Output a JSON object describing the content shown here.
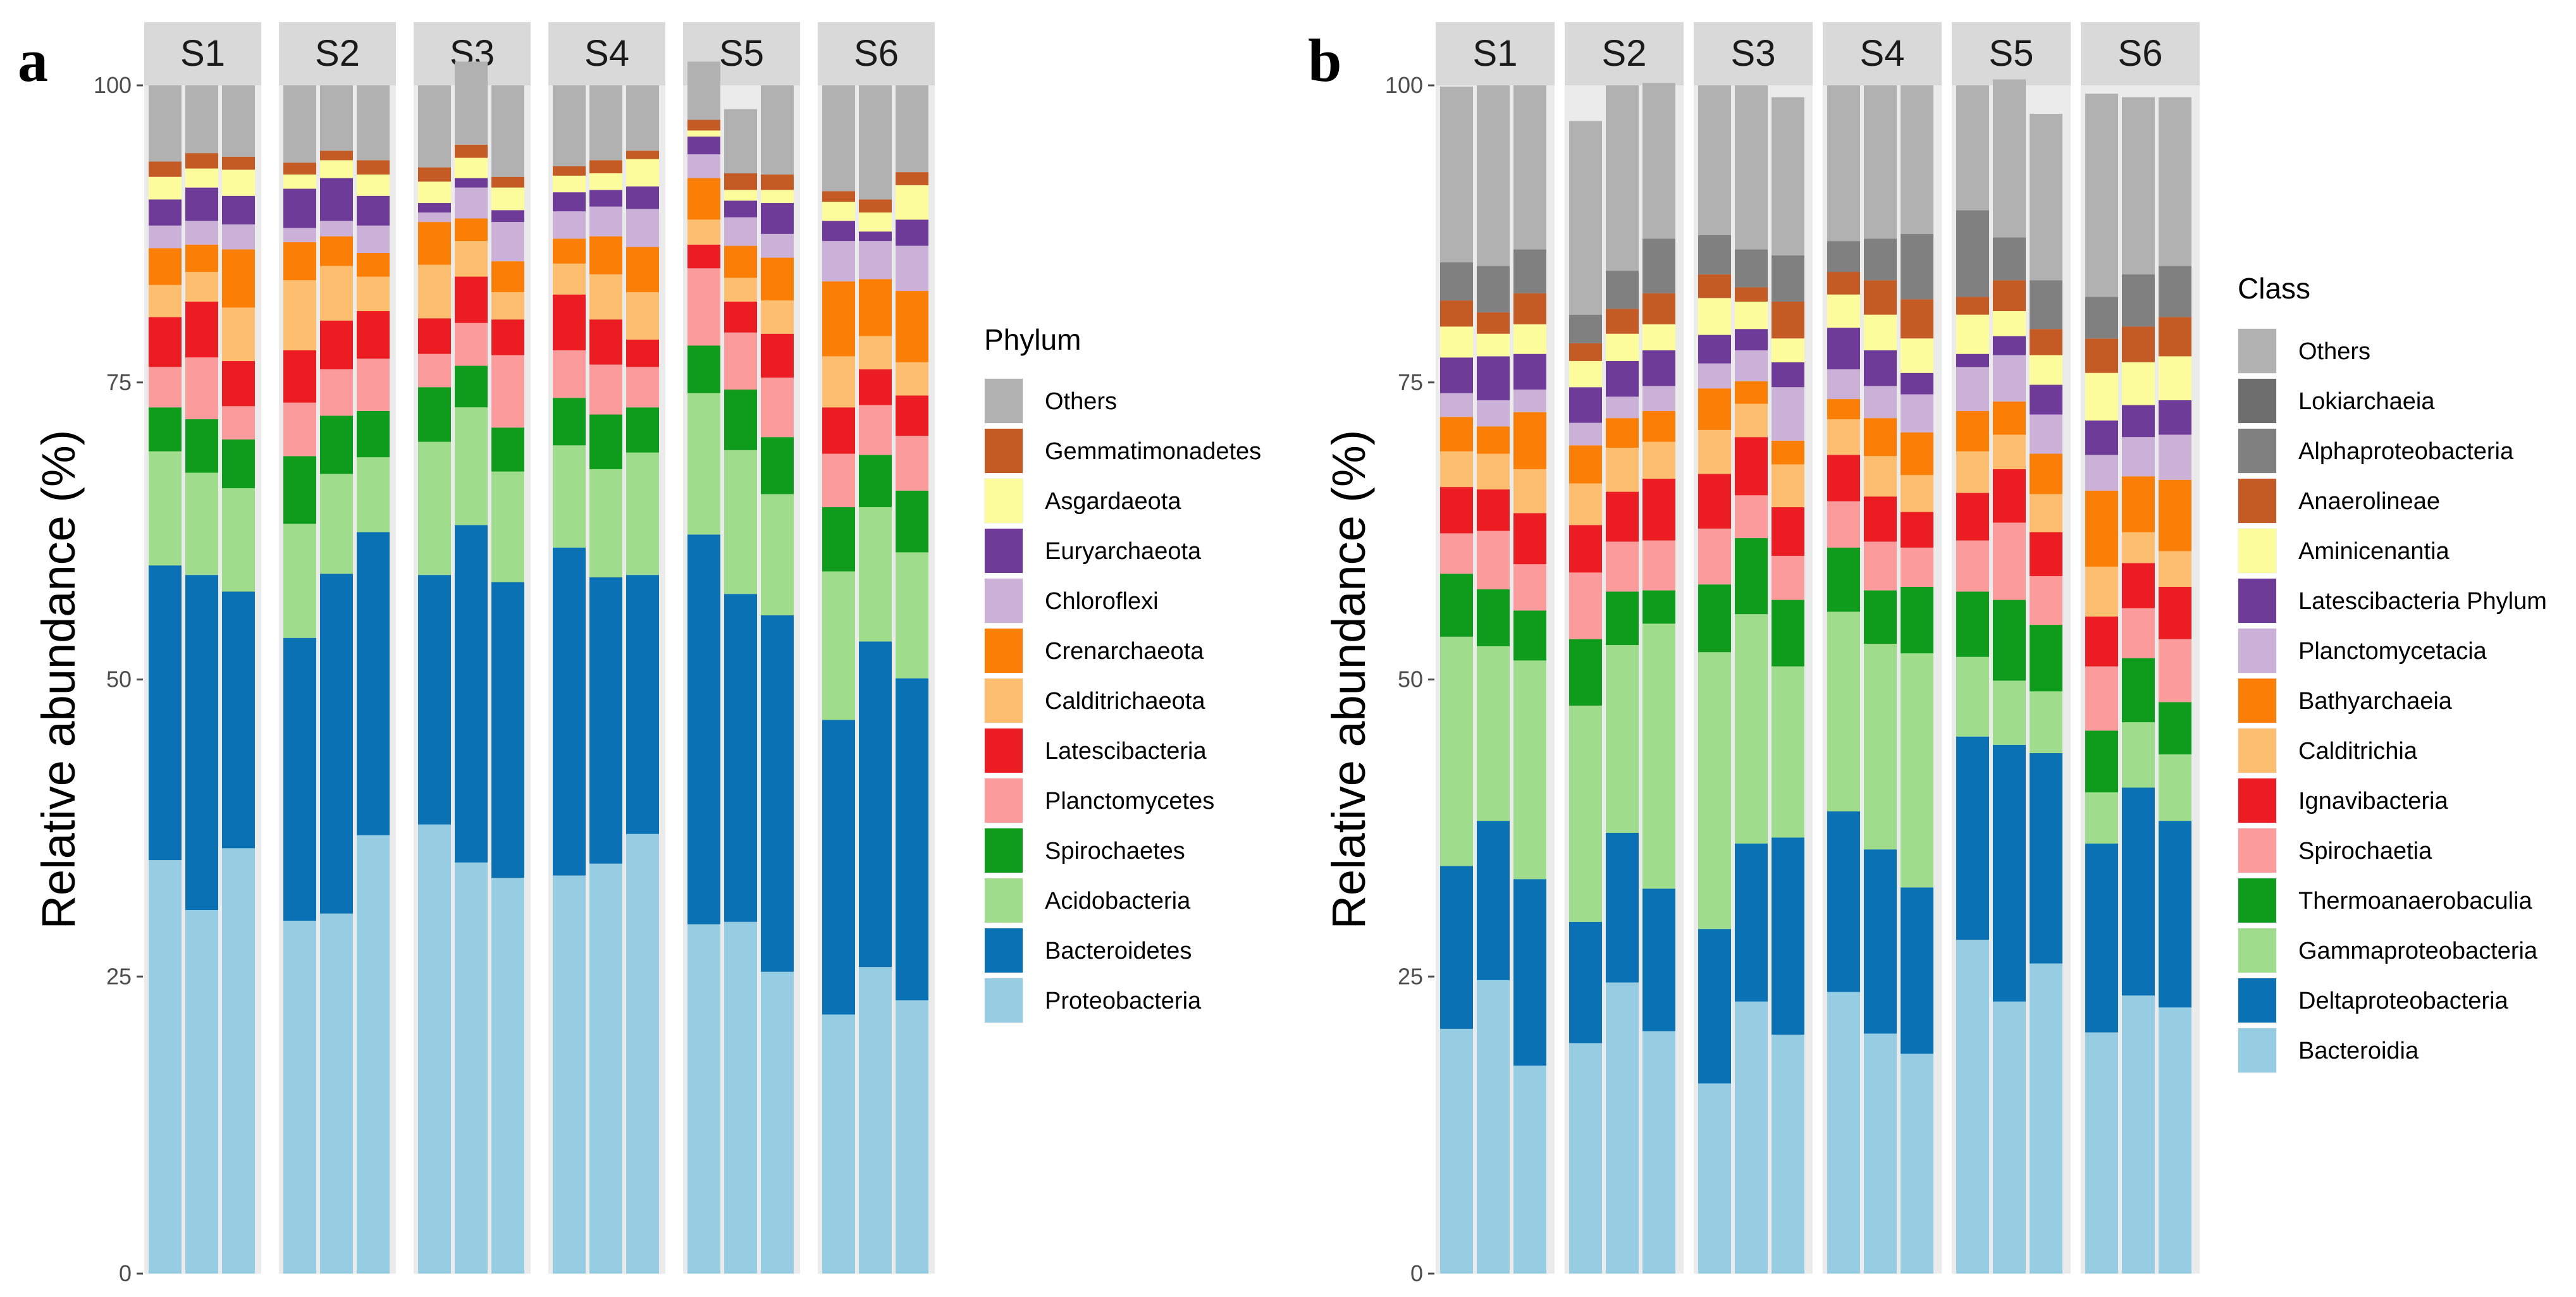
{
  "chart_data": [
    {
      "type": "bar",
      "stacked": true,
      "panel_label": "a",
      "ylabel": "Relative abundance (%)",
      "ylim": [
        0,
        100
      ],
      "yticks": [
        "0",
        "25",
        "50",
        "75",
        "100"
      ],
      "facets": [
        "S1",
        "S2",
        "S3",
        "S4",
        "S5",
        "S6"
      ],
      "replicates_per_facet": 3,
      "legend_title": "Phylum",
      "legend_order": [
        "Others",
        "Gemmatimonadetes",
        "Asgardaeota",
        "Euryarchaeota",
        "Chloroflexi",
        "Crenarchaeota",
        "Calditrichaeota",
        "Latescibacteria",
        "Planctomycetes",
        "Spirochaetes",
        "Acidobacteria",
        "Bacteroidetes",
        "Proteobacteria"
      ],
      "series": [
        {
          "name": "Proteobacteria",
          "color": "#96cde3",
          "values": [
            34.8,
            30.6,
            35.8,
            29.7,
            30.3,
            36.9,
            37.8,
            34.6,
            33.3,
            33.5,
            34.5,
            37.0,
            29.4,
            29.6,
            25.4,
            21.8,
            25.8,
            23.0
          ]
        },
        {
          "name": "Bacteroidetes",
          "color": "#0a72b4",
          "values": [
            24.8,
            28.2,
            21.6,
            23.8,
            28.6,
            25.5,
            21.0,
            28.4,
            24.9,
            27.6,
            24.1,
            21.8,
            32.8,
            27.6,
            30.0,
            24.8,
            27.4,
            27.1
          ]
        },
        {
          "name": "Acidobacteria",
          "color": "#9fdc8b",
          "values": [
            9.6,
            8.6,
            8.7,
            9.6,
            8.4,
            6.3,
            11.2,
            9.9,
            9.3,
            8.6,
            9.1,
            10.3,
            11.9,
            12.1,
            10.2,
            12.5,
            11.3,
            10.6
          ]
        },
        {
          "name": "Spirochaetes",
          "color": "#0f9b1b",
          "values": [
            3.7,
            4.5,
            4.1,
            5.7,
            4.9,
            3.9,
            4.6,
            3.5,
            3.7,
            4.0,
            4.6,
            3.8,
            4.0,
            5.1,
            4.8,
            5.4,
            4.4,
            5.2
          ]
        },
        {
          "name": "Planctomycetes",
          "color": "#fb9b9b",
          "values": [
            3.4,
            5.2,
            2.8,
            4.5,
            3.9,
            4.4,
            2.8,
            3.6,
            6.1,
            4.0,
            4.2,
            3.4,
            6.5,
            4.8,
            5.0,
            4.5,
            4.2,
            4.6
          ]
        },
        {
          "name": "Latescibacteria",
          "color": "#eb1c22",
          "values": [
            4.2,
            4.7,
            3.8,
            4.4,
            4.1,
            4.0,
            3.0,
            3.9,
            3.0,
            4.7,
            3.8,
            2.3,
            2.0,
            2.6,
            3.7,
            3.9,
            3.0,
            3.4
          ]
        },
        {
          "name": "Calditrichaeota",
          "color": "#fdbf6f",
          "values": [
            2.7,
            2.5,
            4.5,
            5.9,
            4.6,
            2.9,
            4.5,
            3.0,
            2.3,
            2.6,
            3.8,
            4.0,
            2.1,
            2.0,
            2.8,
            4.3,
            2.8,
            2.8
          ]
        },
        {
          "name": "Crenarchaeota",
          "color": "#fb7f07",
          "values": [
            3.1,
            2.3,
            4.9,
            3.2,
            2.5,
            2.0,
            3.6,
            1.9,
            2.6,
            2.1,
            3.2,
            3.8,
            3.5,
            2.7,
            3.6,
            6.3,
            4.8,
            6.0
          ]
        },
        {
          "name": "Chloroflexi",
          "color": "#cbb0d8",
          "values": [
            1.9,
            2.0,
            2.1,
            1.2,
            1.3,
            2.3,
            0.8,
            2.6,
            3.3,
            2.3,
            2.5,
            3.2,
            2.0,
            2.4,
            2.0,
            3.4,
            3.2,
            3.8
          ]
        },
        {
          "name": "Euryarchaeota",
          "color": "#6e3b99",
          "values": [
            2.2,
            2.8,
            2.4,
            3.3,
            3.6,
            2.5,
            0.8,
            0.8,
            1.0,
            1.6,
            1.4,
            1.9,
            1.5,
            1.4,
            2.6,
            1.7,
            0.8,
            2.2
          ]
        },
        {
          "name": "Asgardaeota",
          "color": "#fcfc9c",
          "values": [
            1.9,
            1.6,
            2.2,
            1.2,
            1.5,
            1.8,
            1.8,
            1.7,
            1.9,
            1.4,
            1.4,
            2.3,
            0.5,
            0.9,
            1.1,
            1.6,
            1.6,
            2.9
          ]
        },
        {
          "name": "Gemmatimonadetes",
          "color": "#c45a24",
          "values": [
            1.3,
            1.3,
            1.1,
            1.0,
            0.8,
            1.2,
            1.2,
            1.1,
            0.9,
            0.8,
            1.1,
            0.7,
            0.9,
            1.4,
            1.3,
            0.9,
            1.1,
            1.1
          ]
        },
        {
          "name": "Others",
          "color": "#b1b1b1",
          "values": [
            6.4,
            5.7,
            6.0,
            6.5,
            5.5,
            6.3,
            6.9,
            7.0,
            7.7,
            6.8,
            6.3,
            5.5,
            4.9,
            5.4,
            7.5,
            8.9,
            9.6,
            7.3
          ]
        }
      ]
    },
    {
      "type": "bar",
      "stacked": true,
      "panel_label": "b",
      "ylabel": "Relative abundance (%)",
      "ylim": [
        0,
        100
      ],
      "yticks": [
        "0",
        "25",
        "50",
        "75",
        "100"
      ],
      "facets": [
        "S1",
        "S2",
        "S3",
        "S4",
        "S5",
        "S6"
      ],
      "replicates_per_facet": 3,
      "legend_title": "Class",
      "legend_order": [
        "Others",
        "Lokiarchaeia",
        "Alphaproteobacteria",
        "Anaerolineae",
        "Aminicenantia",
        "Latescibacteria Phylum",
        "Planctomycetacia",
        "Bathyarchaeia",
        "Calditrichia",
        "Ignavibacteria",
        "Spirochaetia",
        "Thermoanaerobaculia",
        "Gammaproteobacteria",
        "Deltaproteobacteria",
        "Bacteroidia"
      ],
      "series": [
        {
          "name": "Bacteroidia",
          "color": "#96cde3",
          "values": [
            20.6,
            24.7,
            17.5,
            19.4,
            24.5,
            20.4,
            16.0,
            22.9,
            20.1,
            23.7,
            20.2,
            18.5,
            28.1,
            22.9,
            26.1,
            20.3,
            23.4,
            22.4
          ]
        },
        {
          "name": "Deltaproteobacteria",
          "color": "#0a72b4",
          "values": [
            13.7,
            13.4,
            15.7,
            10.2,
            12.6,
            12.0,
            13.0,
            13.3,
            16.6,
            15.2,
            15.5,
            14.0,
            17.1,
            21.6,
            17.7,
            15.9,
            17.5,
            15.7
          ]
        },
        {
          "name": "Gammaproteobacteria",
          "color": "#9fdc8b",
          "values": [
            19.3,
            14.7,
            18.4,
            18.2,
            15.8,
            22.3,
            23.3,
            19.3,
            14.4,
            16.8,
            17.3,
            19.7,
            6.7,
            5.4,
            5.2,
            4.3,
            5.5,
            5.6
          ]
        },
        {
          "name": "Thermoanaerobaculia",
          "color": "#0f9b1b",
          "values": [
            5.3,
            4.8,
            4.2,
            5.6,
            4.5,
            2.8,
            5.7,
            6.4,
            5.6,
            5.4,
            4.5,
            5.6,
            5.5,
            6.8,
            5.6,
            5.2,
            5.4,
            4.4
          ]
        },
        {
          "name": "Spirochaetia",
          "color": "#fb9b9b",
          "values": [
            3.4,
            4.9,
            3.9,
            5.6,
            4.2,
            4.2,
            4.7,
            3.6,
            3.7,
            3.9,
            4.1,
            3.3,
            4.3,
            6.5,
            4.1,
            5.4,
            4.2,
            5.3
          ]
        },
        {
          "name": "Ignavibacteria",
          "color": "#eb1c22",
          "values": [
            3.9,
            3.5,
            4.3,
            4.0,
            4.2,
            5.2,
            4.6,
            4.9,
            4.1,
            3.9,
            3.8,
            3.0,
            4.0,
            4.5,
            3.7,
            4.2,
            3.8,
            4.4
          ]
        },
        {
          "name": "Calditrichia",
          "color": "#fdbf6f",
          "values": [
            3.0,
            3.0,
            3.7,
            3.5,
            3.7,
            3.1,
            3.7,
            2.8,
            3.6,
            3.0,
            3.4,
            3.1,
            3.5,
            2.9,
            3.2,
            4.2,
            2.6,
            3.0
          ]
        },
        {
          "name": "Bathyarchaeia",
          "color": "#fb7f07",
          "values": [
            2.9,
            2.3,
            4.8,
            3.2,
            2.5,
            2.6,
            3.5,
            1.9,
            2.0,
            1.7,
            3.2,
            3.6,
            3.4,
            2.8,
            3.4,
            6.4,
            4.7,
            6.0
          ]
        },
        {
          "name": "Planctomycetacia",
          "color": "#cbb0d8",
          "values": [
            2.0,
            2.2,
            1.9,
            1.9,
            1.8,
            2.1,
            2.1,
            2.6,
            4.5,
            2.5,
            2.7,
            3.2,
            3.7,
            3.9,
            3.3,
            3.0,
            3.3,
            3.8
          ]
        },
        {
          "name": "Latescibacteria Phylum",
          "color": "#6e3b99",
          "values": [
            3.0,
            3.7,
            3.0,
            3.0,
            3.0,
            3.0,
            2.4,
            1.8,
            2.1,
            3.5,
            3.0,
            1.8,
            1.1,
            1.6,
            2.5,
            2.9,
            2.7,
            2.9
          ]
        },
        {
          "name": "Aminicenantia",
          "color": "#fcfc9c",
          "values": [
            2.6,
            1.9,
            2.5,
            2.2,
            2.3,
            2.2,
            3.1,
            2.3,
            2.0,
            2.8,
            3.0,
            2.9,
            3.3,
            2.1,
            2.5,
            4.0,
            3.6,
            3.7
          ]
        },
        {
          "name": "Anaerolineae",
          "color": "#c45a24",
          "values": [
            2.2,
            1.8,
            2.6,
            1.5,
            2.1,
            2.6,
            2.0,
            1.2,
            3.1,
            1.9,
            2.9,
            3.3,
            1.5,
            2.6,
            2.2,
            2.9,
            3.0,
            3.3
          ]
        },
        {
          "name": "Alphaproteobacteria",
          "color": "#808080",
          "values": [
            3.2,
            3.9,
            3.7,
            2.4,
            3.2,
            4.6,
            3.3,
            3.2,
            3.9,
            2.6,
            3.5,
            5.5,
            7.3,
            3.6,
            4.1,
            3.5,
            4.4,
            4.3
          ]
        },
        {
          "name": "Lokiarchaeia",
          "color": "#6e6e6e",
          "values": [
            0,
            0,
            0,
            0,
            0,
            0,
            0,
            0,
            0,
            0,
            0,
            0,
            0,
            0,
            0,
            0,
            0,
            0
          ]
        },
        {
          "name": "Others",
          "color": "#b1b1b1",
          "values": [
            14.8,
            15.2,
            13.8,
            16.3,
            15.6,
            13.1,
            12.6,
            13.8,
            13.3,
            13.1,
            12.9,
            12.5,
            10.5,
            13.3,
            14.0,
            17.1,
            14.9,
            14.2
          ]
        }
      ]
    }
  ]
}
